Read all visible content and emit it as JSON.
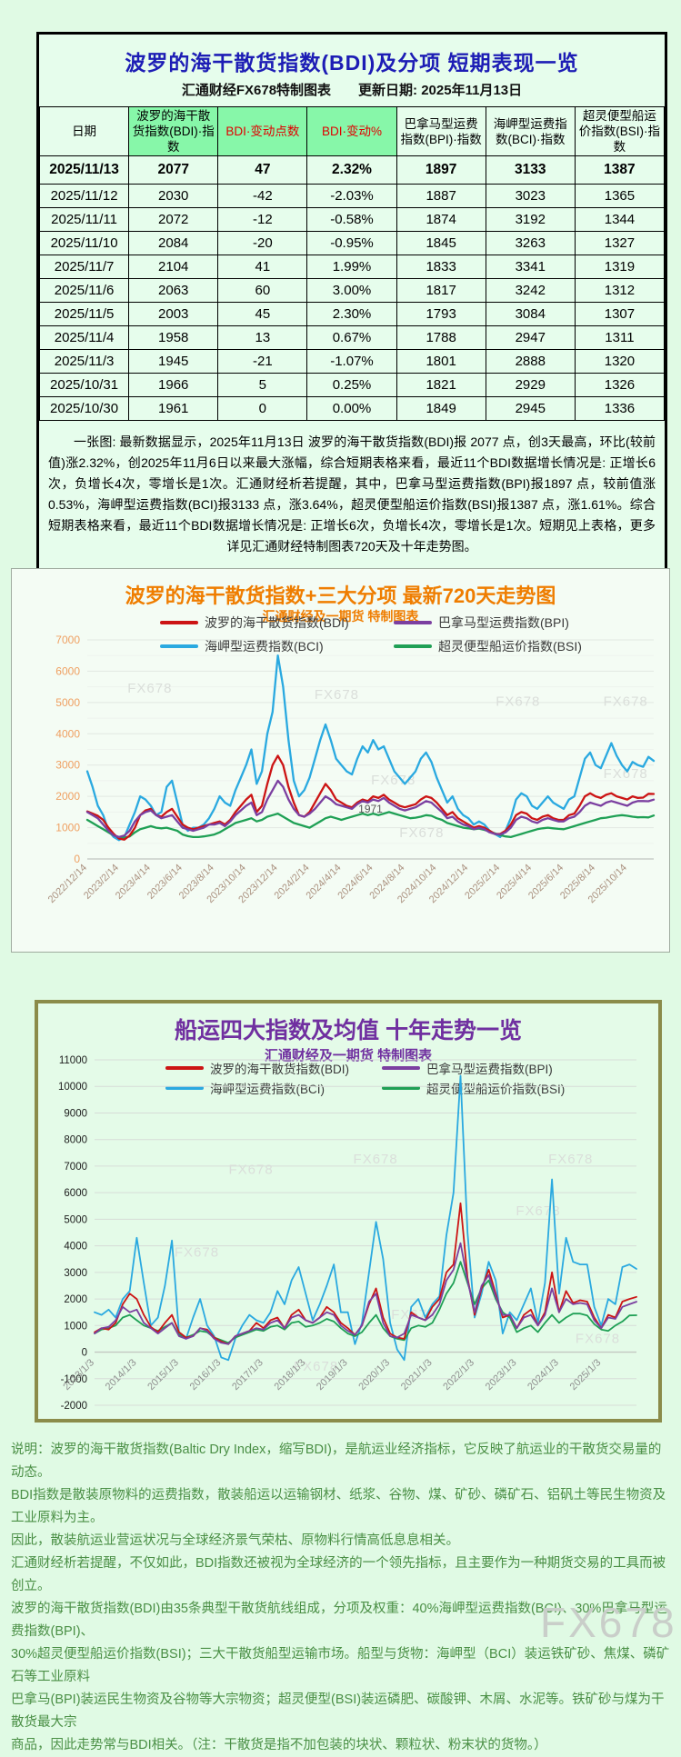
{
  "page": {
    "big_watermark": "FX678"
  },
  "table_panel": {
    "title": "波罗的海干散货指数(BDI)及分项  短期表现一览",
    "subtitle": "汇通财经FX678特制图表　　更新日期: 2025年11月13日",
    "headers": [
      {
        "label": "日期",
        "fg": "#000000",
        "bg": "#e6fdec"
      },
      {
        "label": "波罗的海干散货指数(BDI)·指数",
        "fg": "#000000",
        "bg": "#87f7a9"
      },
      {
        "label": "BDI·变动点数",
        "fg": "#e00000",
        "bg": "#87f7a9"
      },
      {
        "label": "BDI·变动%",
        "fg": "#e00000",
        "bg": "#87f7a9"
      },
      {
        "label": "巴拿马型运费指数(BPI)·指数",
        "fg": "#000000",
        "bg": "#e6fdec"
      },
      {
        "label": "海岬型运费指数(BCI)·指数",
        "fg": "#000000",
        "bg": "#e6fdec"
      },
      {
        "label": "超灵便型船运价指数(BSI)·指数",
        "fg": "#000000",
        "bg": "#e6fdec"
      }
    ],
    "rows": [
      [
        "2025/11/13",
        "2077",
        "47",
        "2.32%",
        "1897",
        "3133",
        "1387"
      ],
      [
        "2025/11/12",
        "2030",
        "-42",
        "-2.03%",
        "1887",
        "3023",
        "1365"
      ],
      [
        "2025/11/11",
        "2072",
        "-12",
        "-0.58%",
        "1874",
        "3192",
        "1344"
      ],
      [
        "2025/11/10",
        "2084",
        "-20",
        "-0.95%",
        "1845",
        "3263",
        "1327"
      ],
      [
        "2025/11/7",
        "2104",
        "41",
        "1.99%",
        "1833",
        "3341",
        "1319"
      ],
      [
        "2025/11/6",
        "2063",
        "60",
        "3.00%",
        "1817",
        "3242",
        "1312"
      ],
      [
        "2025/11/5",
        "2003",
        "45",
        "2.30%",
        "1793",
        "3084",
        "1307"
      ],
      [
        "2025/11/4",
        "1958",
        "13",
        "0.67%",
        "1788",
        "2947",
        "1311"
      ],
      [
        "2025/11/3",
        "1945",
        "-21",
        "-1.07%",
        "1801",
        "2888",
        "1320"
      ],
      [
        "2025/10/31",
        "1966",
        "5",
        "0.25%",
        "1821",
        "2929",
        "1326"
      ],
      [
        "2025/10/30",
        "1961",
        "0",
        "0.00%",
        "1849",
        "2945",
        "1336"
      ]
    ],
    "note": "一张图: 最新数据显示，2025年11月13日 波罗的海干散货指数(BDI)报 2077 点，创3天最高，环比(较前值)涨2.32%，创2025年11月6日以来最大涨幅，综合短期表格来看，最近11个BDI数据增长情况是: 正增长6次，负增长4次，零增长是1次。汇通财经析若提醒，其中，巴拿马型运费指数(BPI)报1897 点，较前值涨0.53%，海岬型运费指数(BCI)报3133 点，涨3.64%，超灵便型船运价指数(BSI)报1387 点，涨1.61%。综合短期表格来看，最近11个BDI数据增长情况是: 正增长6次，负增长4次，零增长是1次。短期见上表格，更多详见汇通财经特制图表720天及十年走势图。"
  },
  "chart_data": [
    {
      "type": "line",
      "title": "波罗的海干散货指数+三大分项  最新720天走势图",
      "subtitle": "汇通财经及一期货 特制图表",
      "title_color": "#ef7d00",
      "ylim": [
        0,
        7000
      ],
      "ytick": 1000,
      "grid": true,
      "legend_position": "top-center",
      "watermark": "FX678",
      "x_labels": [
        "2022/12/14",
        "2023/2/14",
        "2023/4/14",
        "2023/6/14",
        "2023/8/14",
        "2023/10/14",
        "2023/12/14",
        "2024/2/14",
        "2024/4/14",
        "2024/6/14",
        "2024/8/14",
        "2024/10/14",
        "2024/12/14",
        "2025/2/14",
        "2025/4/14",
        "2025/6/14",
        "2025/8/14",
        "2025/10/14"
      ],
      "draw_order": [
        2,
        3,
        0,
        1
      ],
      "annotations": [
        {
          "text": "1971",
          "xf": 0.5,
          "y": 1480,
          "color": "#555555"
        }
      ],
      "series": [
        {
          "name": "波罗的海干散货指数(BDI)",
          "color": "#cc1414",
          "values": [
            1520,
            1450,
            1380,
            1250,
            1000,
            800,
            650,
            620,
            750,
            1000,
            1400,
            1550,
            1600,
            1400,
            1350,
            1500,
            1600,
            1350,
            1100,
            1000,
            950,
            1000,
            1050,
            1100,
            1150,
            1200,
            1100,
            1250,
            1500,
            1700,
            1900,
            2050,
            1500,
            1700,
            2400,
            3000,
            3300,
            3000,
            2300,
            1800,
            1400,
            1350,
            1500,
            1800,
            2100,
            2400,
            2200,
            1900,
            1800,
            1700,
            1650,
            1800,
            1900,
            1850,
            2000,
            1950,
            2050,
            1900,
            1800,
            1700,
            1650,
            1700,
            1750,
            1900,
            2000,
            1950,
            1800,
            1600,
            1400,
            1500,
            1300,
            1200,
            1100,
            1000,
            1050,
            1000,
            900,
            800,
            800,
            900,
            1100,
            1400,
            1500,
            1450,
            1300,
            1250,
            1350,
            1400,
            1300,
            1250,
            1250,
            1400,
            1450,
            1700,
            2000,
            2100,
            2000,
            1950,
            2050,
            2100,
            2000,
            1950,
            1900,
            2000,
            1950,
            1961,
            2084,
            2077
          ]
        },
        {
          "name": "巴拿马型运费指数(BPI)",
          "color": "#7b3fa0",
          "values": [
            1500,
            1400,
            1300,
            1100,
            900,
            750,
            700,
            750,
            900,
            1200,
            1400,
            1500,
            1550,
            1400,
            1300,
            1350,
            1400,
            1200,
            1000,
            950,
            900,
            950,
            1000,
            1100,
            1100,
            1150,
            1050,
            1200,
            1400,
            1550,
            1700,
            1800,
            1400,
            1500,
            1900,
            2200,
            2500,
            2300,
            1900,
            1600,
            1400,
            1350,
            1450,
            1600,
            1800,
            2000,
            1900,
            1750,
            1700,
            1650,
            1600,
            1750,
            1850,
            1800,
            1900,
            1850,
            1950,
            1800,
            1700,
            1600,
            1550,
            1600,
            1650,
            1750,
            1850,
            1800,
            1650,
            1500,
            1300,
            1350,
            1200,
            1100,
            1050,
            950,
            1000,
            950,
            850,
            800,
            780,
            850,
            1000,
            1250,
            1350,
            1300,
            1200,
            1150,
            1250,
            1300,
            1250,
            1200,
            1200,
            1300,
            1350,
            1500,
            1700,
            1800,
            1750,
            1700,
            1800,
            1850,
            1800,
            1750,
            1700,
            1800,
            1850,
            1849,
            1845,
            1897
          ]
        },
        {
          "name": "海岬型运费指数(BCI)",
          "color": "#2aa9e0",
          "values": [
            2800,
            2300,
            1700,
            1400,
            900,
            700,
            600,
            700,
            1100,
            1500,
            2000,
            1900,
            1700,
            1400,
            1500,
            2300,
            2500,
            1800,
            1100,
            900,
            1000,
            1000,
            1100,
            1300,
            1600,
            2000,
            1800,
            1700,
            2200,
            2600,
            3000,
            3500,
            2400,
            2800,
            4000,
            4700,
            6500,
            5500,
            3800,
            2500,
            2000,
            2200,
            2600,
            3200,
            3800,
            4300,
            3800,
            3200,
            3000,
            2800,
            2700,
            3200,
            3600,
            3400,
            3800,
            3500,
            3600,
            3200,
            2800,
            2600,
            2400,
            2600,
            2800,
            3200,
            3400,
            3100,
            2600,
            2200,
            1800,
            2000,
            1600,
            1400,
            1300,
            1100,
            1200,
            1100,
            900,
            800,
            700,
            900,
            1300,
            1900,
            2100,
            2000,
            1700,
            1600,
            1800,
            2000,
            1800,
            1700,
            1600,
            1900,
            2000,
            2600,
            3200,
            3400,
            3000,
            2900,
            3300,
            3700,
            3300,
            3000,
            2800,
            3100,
            3000,
            2945,
            3263,
            3133
          ]
        },
        {
          "name": "超灵便型船运价指数(BSI)",
          "color": "#1fa055",
          "values": [
            1250,
            1150,
            1050,
            950,
            850,
            750,
            700,
            680,
            720,
            850,
            950,
            1000,
            1050,
            1000,
            980,
            1000,
            950,
            900,
            780,
            730,
            700,
            700,
            720,
            750,
            780,
            850,
            950,
            1050,
            1150,
            1200,
            1250,
            1300,
            1200,
            1250,
            1350,
            1400,
            1450,
            1350,
            1250,
            1150,
            1100,
            1050,
            1000,
            1100,
            1200,
            1300,
            1350,
            1300,
            1250,
            1300,
            1350,
            1400,
            1450,
            1400,
            1450,
            1400,
            1450,
            1500,
            1450,
            1400,
            1350,
            1300,
            1320,
            1350,
            1400,
            1380,
            1300,
            1250,
            1150,
            1100,
            1050,
            1000,
            980,
            950,
            970,
            930,
            880,
            820,
            760,
            720,
            700,
            750,
            800,
            850,
            900,
            950,
            980,
            1000,
            980,
            960,
            950,
            1000,
            1050,
            1100,
            1150,
            1200,
            1250,
            1300,
            1320,
            1350,
            1380,
            1400,
            1380,
            1350,
            1330,
            1336,
            1327,
            1387
          ]
        }
      ]
    },
    {
      "type": "line",
      "title": "船运四大指数及均值 十年走势一览",
      "subtitle": "汇通财经及一期货 特制图表",
      "title_color": "#7030a0",
      "ylim": [
        -2000,
        11000
      ],
      "ytick": 1000,
      "grid": true,
      "legend_position": "top-center",
      "watermark": "FX678",
      "x_labels": [
        "2013/1/3",
        "2014/1/3",
        "2015/1/3",
        "2016/1/3",
        "2017/1/3",
        "2018/1/3",
        "2019/1/3",
        "2020/1/3",
        "2021/1/3",
        "2022/1/3",
        "2023/1/3",
        "2024/1/3",
        "2025/1/3"
      ],
      "draw_order": [
        2,
        3,
        0,
        1
      ],
      "annotations": [],
      "series": [
        {
          "name": "波罗的海干散货指数(BDI)",
          "color": "#cc1414",
          "values": [
            750,
            900,
            850,
            1100,
            1800,
            2200,
            2000,
            1400,
            950,
            750,
            1100,
            1400,
            750,
            550,
            600,
            900,
            850,
            550,
            400,
            300,
            600,
            700,
            800,
            1100,
            900,
            1200,
            1300,
            900,
            1400,
            1600,
            1200,
            1100,
            1300,
            1700,
            1500,
            1100,
            900,
            650,
            1000,
            1800,
            2400,
            1300,
            700,
            550,
            500,
            1500,
            1300,
            1200,
            1700,
            2000,
            3000,
            3300,
            5600,
            2800,
            1400,
            2400,
            3100,
            2200,
            1300,
            1400,
            900,
            1400,
            1600,
            1000,
            1500,
            3000,
            1500,
            2300,
            1850,
            1950,
            1900,
            1300,
            900,
            1400,
            1300,
            1900,
            2000,
            2077
          ]
        },
        {
          "name": "巴拿马型运费指数(BPI)",
          "color": "#7b3fa0",
          "values": [
            700,
            900,
            950,
            1200,
            1700,
            1500,
            1600,
            1100,
            900,
            700,
            900,
            1100,
            600,
            500,
            600,
            900,
            800,
            500,
            350,
            300,
            600,
            700,
            800,
            900,
            850,
            1100,
            1200,
            900,
            1300,
            1400,
            1200,
            1100,
            1300,
            1500,
            1400,
            1000,
            800,
            650,
            1000,
            1900,
            2200,
            1100,
            600,
            550,
            700,
            1400,
            1300,
            1200,
            1400,
            1800,
            2700,
            3100,
            4100,
            2700,
            1500,
            2500,
            2900,
            2100,
            1400,
            1400,
            900,
            1300,
            1400,
            1000,
            1400,
            2400,
            1500,
            2000,
            1800,
            1850,
            1800,
            1200,
            900,
            1300,
            1250,
            1700,
            1800,
            1897
          ]
        },
        {
          "name": "海岬型运费指数(BCI)",
          "color": "#2aa9e0",
          "values": [
            1500,
            1400,
            1600,
            1300,
            2000,
            2300,
            4300,
            2600,
            1000,
            1300,
            2500,
            4200,
            700,
            500,
            1300,
            2000,
            1000,
            600,
            -200,
            -300,
            500,
            1000,
            1400,
            1200,
            1100,
            1500,
            2300,
            1800,
            2700,
            3200,
            2200,
            1200,
            1800,
            2500,
            3300,
            1500,
            1500,
            300,
            1100,
            3000,
            4900,
            3500,
            1100,
            100,
            -300,
            1700,
            2000,
            1300,
            1800,
            2100,
            4400,
            6000,
            10400,
            4500,
            1300,
            2200,
            3400,
            2700,
            700,
            1500,
            1200,
            1800,
            2400,
            1100,
            2600,
            6500,
            2200,
            4300,
            3400,
            3300,
            3300,
            1700,
            1000,
            2000,
            1800,
            3200,
            3300,
            3133
          ]
        },
        {
          "name": "超灵便型船运价指数(BSI)",
          "color": "#1fa055",
          "values": [
            700,
            850,
            900,
            1000,
            1300,
            1400,
            1200,
            1000,
            900,
            800,
            950,
            1100,
            650,
            550,
            650,
            800,
            750,
            550,
            450,
            350,
            550,
            650,
            750,
            850,
            800,
            950,
            1000,
            850,
            1100,
            1150,
            950,
            1000,
            1100,
            1250,
            1150,
            900,
            700,
            600,
            750,
            1100,
            1400,
            900,
            600,
            500,
            450,
            900,
            1000,
            950,
            1100,
            1600,
            2200,
            2600,
            3400,
            2600,
            1800,
            2400,
            2700,
            2000,
            1500,
            1300,
            750,
            900,
            1000,
            750,
            1100,
            1400,
            1100,
            1300,
            1450,
            1450,
            1380,
            1050,
            850,
            800,
            1000,
            1150,
            1380,
            1387
          ]
        }
      ]
    }
  ],
  "footer_lines": [
    "说明：波罗的海干散货指数(Baltic Dry Index，缩写BDI)，是航运业经济指标，它反映了航运业的干散货交易量的动态。",
    "BDI指数是散装原物料的运费指数，散装船运以运输钢材、纸浆、谷物、煤、矿砂、磷矿石、铝矾土等民生物资及工业原料为主。",
    "因此，散装航运业营运状况与全球经济景气荣枯、原物料行情高低息息相关。",
    "汇通财经析若提醒，不仅如此，BDI指数还被视为全球经济的一个领先指标，且主要作为一种期货交易的工具而被创立。",
    "波罗的海干散货指数(BDI)由35条典型干散货航线组成，分项及权重：40%海岬型运费指数(BCI)、30%巴拿马型运费指数(BPI)、",
    "30%超灵便型船运价指数(BSI)；三大干散货船型运输市场。船型与货物：海岬型（BCI）装运铁矿砂、焦煤、磷矿石等工业原料",
    "巴拿马(BPI)装运民生物资及谷物等大宗物资；超灵便型(BSI)装运磷肥、碳酸钾、木屑、水泥等。铁矿砂与煤为干散货最大宗",
    "商品，因此走势常与BDI相关。（注：干散货是指不加包装的块状、颗粒状、粉末状的货物。）"
  ]
}
